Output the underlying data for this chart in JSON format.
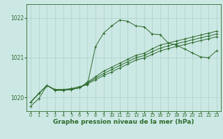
{
  "background_color": "#cce8e4",
  "grid_color": "#aad0cc",
  "line_color": "#2d6b2d",
  "title": "Graphe pression niveau de la mer (hPa)",
  "ylim": [
    1019.65,
    1022.35
  ],
  "xlim": [
    -0.5,
    23.5
  ],
  "yticks": [
    1020,
    1021,
    1022
  ],
  "xticks": [
    0,
    1,
    2,
    3,
    4,
    5,
    6,
    7,
    8,
    9,
    10,
    11,
    12,
    13,
    14,
    15,
    16,
    17,
    18,
    19,
    20,
    21,
    22,
    23
  ],
  "series": [
    [
      1019.78,
      1019.97,
      1020.3,
      1020.2,
      1020.2,
      1020.22,
      1020.27,
      1020.32,
      1021.28,
      1021.62,
      1021.8,
      1021.95,
      1021.92,
      1021.8,
      1021.78,
      1021.6,
      1021.58,
      1021.37,
      1021.32,
      1021.22,
      1021.12,
      1021.02,
      1021.0,
      1021.18
    ],
    [
      1019.88,
      1020.1,
      1020.3,
      1020.18,
      1020.18,
      1020.2,
      1020.24,
      1020.38,
      1020.52,
      1020.66,
      1020.76,
      1020.86,
      1020.96,
      1021.06,
      1021.11,
      1021.22,
      1021.32,
      1021.37,
      1021.42,
      1021.47,
      1021.52,
      1021.57,
      1021.62,
      1021.67
    ],
    [
      1019.88,
      1020.1,
      1020.3,
      1020.18,
      1020.18,
      1020.2,
      1020.24,
      1020.36,
      1020.48,
      1020.6,
      1020.7,
      1020.8,
      1020.9,
      1021.0,
      1021.05,
      1021.15,
      1021.24,
      1021.3,
      1021.35,
      1021.4,
      1021.45,
      1021.5,
      1021.55,
      1021.6
    ],
    [
      1019.88,
      1020.1,
      1020.3,
      1020.18,
      1020.18,
      1020.2,
      1020.24,
      1020.34,
      1020.44,
      1020.55,
      1020.64,
      1020.74,
      1020.84,
      1020.94,
      1020.99,
      1021.08,
      1021.17,
      1021.23,
      1021.28,
      1021.33,
      1021.38,
      1021.43,
      1021.48,
      1021.53
    ]
  ],
  "figsize": [
    3.2,
    2.0
  ],
  "dpi": 100
}
